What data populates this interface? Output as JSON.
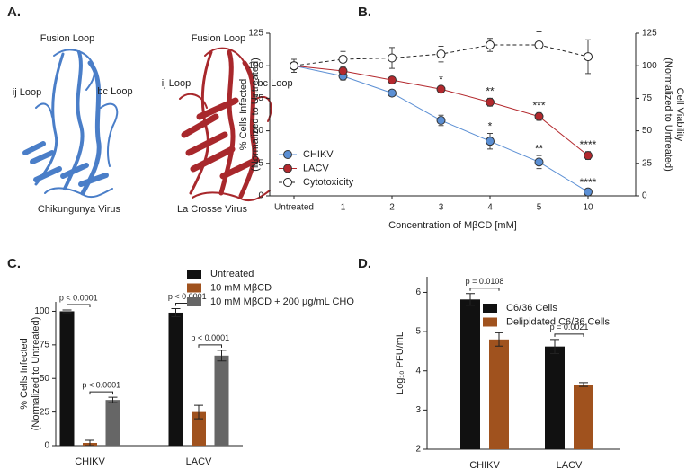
{
  "panel_a": {
    "panel": "A.",
    "structures": [
      {
        "name": "Chikungunya Virus",
        "labels": [
          "Fusion Loop",
          "ij Loop",
          "bc Loop"
        ]
      },
      {
        "name": "La Crosse Virus",
        "labels": [
          "Fusion Loop",
          "ij Loop",
          "bc Loop"
        ]
      }
    ]
  },
  "chart_data": [
    {
      "type": "line",
      "panel": "B.",
      "xlabel": "Concentration of MβCD [mM]",
      "ylabel": [
        "% Cells Infected",
        "(Normalized to Untreated)"
      ],
      "y2label": [
        "Cell Viability",
        "(Normalized to Untreated)"
      ],
      "categories": [
        "Untreated",
        "1",
        "2",
        "3",
        "4",
        "5",
        "10"
      ],
      "ylim": [
        0,
        125
      ],
      "yticks": [
        0,
        25,
        50,
        75,
        100,
        125
      ],
      "y2lim": [
        0,
        125
      ],
      "y2ticks": [
        0,
        25,
        50,
        75,
        100,
        125
      ],
      "legend": "lower left",
      "series": [
        {
          "name": "CHIKV",
          "color": "#5b8fd4",
          "marker": "filled",
          "style": "solid",
          "values": [
            100,
            92,
            79,
            58,
            42,
            26,
            3
          ],
          "errors": [
            5,
            3,
            2,
            4,
            6,
            5,
            2
          ],
          "annotations": [
            null,
            null,
            null,
            null,
            "*",
            "**",
            "****"
          ]
        },
        {
          "name": "LACV",
          "color": "#b3282d",
          "marker": "filled",
          "style": "solid",
          "values": [
            100,
            96,
            89,
            82,
            72,
            61,
            31
          ],
          "errors": [
            5,
            2,
            2,
            2,
            3,
            3,
            3
          ],
          "annotations": [
            null,
            null,
            null,
            "*",
            "**",
            "***",
            "****"
          ]
        },
        {
          "name": "Cytotoxicity",
          "color": "#222222",
          "marker": "open",
          "style": "dashed",
          "axis": "y2",
          "values": [
            100,
            105,
            106,
            109,
            116,
            116,
            107
          ],
          "errors": [
            5,
            6,
            8,
            6,
            5,
            10,
            13
          ]
        }
      ]
    },
    {
      "type": "bar",
      "panel": "C.",
      "ylabel": [
        "% Cells Infected",
        "(Normalized to Untreated)"
      ],
      "categories": [
        "CHIKV",
        "LACV"
      ],
      "ylim": [
        0,
        107
      ],
      "yticks": [
        0,
        25,
        50,
        75,
        100
      ],
      "legend": "upper right",
      "series": [
        {
          "name": "Untreated",
          "color": "#111111",
          "values": [
            100,
            99
          ],
          "errors": [
            1,
            3
          ]
        },
        {
          "name": "10 mM MβCD",
          "color": "#a0521e",
          "values": [
            2,
            25
          ],
          "errors": [
            2,
            5
          ]
        },
        {
          "name": "10 mM MβCD + 200 µg/mL CHO",
          "color": "#666666",
          "values": [
            34,
            67
          ],
          "errors": [
            2,
            4
          ]
        }
      ],
      "comparisons": [
        {
          "label": "p < 0.0001",
          "category": "CHIKV",
          "pair": [
            "Untreated",
            "10 mM MβCD"
          ]
        },
        {
          "label": "p < 0.0001",
          "category": "CHIKV",
          "pair": [
            "10 mM MβCD",
            "10 mM MβCD + 200 µg/mL CHO"
          ]
        },
        {
          "label": "p < 0.0001",
          "category": "LACV",
          "pair": [
            "Untreated",
            "10 mM MβCD"
          ]
        },
        {
          "label": "p < 0.0001",
          "category": "LACV",
          "pair": [
            "10 mM MβCD",
            "10 mM MβCD + 200 µg/mL CHO"
          ]
        }
      ]
    },
    {
      "type": "bar",
      "panel": "D.",
      "ylabel": [
        "Log₁₀ PFU/mL"
      ],
      "categories": [
        "CHIKV",
        "LACV"
      ],
      "ylim": [
        2,
        6.4
      ],
      "yticks": [
        2,
        3,
        4,
        5,
        6
      ],
      "legend": "upper right",
      "series": [
        {
          "name": "C6/36 Cells",
          "color": "#111111",
          "values": [
            5.82,
            4.62
          ],
          "errors": [
            0.15,
            0.18
          ]
        },
        {
          "name": "Delipidated C6/36 Cells",
          "color": "#a0521e",
          "values": [
            4.8,
            3.65
          ],
          "errors": [
            0.17,
            0.05
          ]
        }
      ],
      "comparisons": [
        {
          "label": "p = 0.0108",
          "category": "CHIKV",
          "pair": [
            "C6/36 Cells",
            "Delipidated C6/36 Cells"
          ]
        },
        {
          "label": "p = 0.0021",
          "category": "LACV",
          "pair": [
            "C6/36 Cells",
            "Delipidated C6/36 Cells"
          ]
        }
      ]
    }
  ]
}
